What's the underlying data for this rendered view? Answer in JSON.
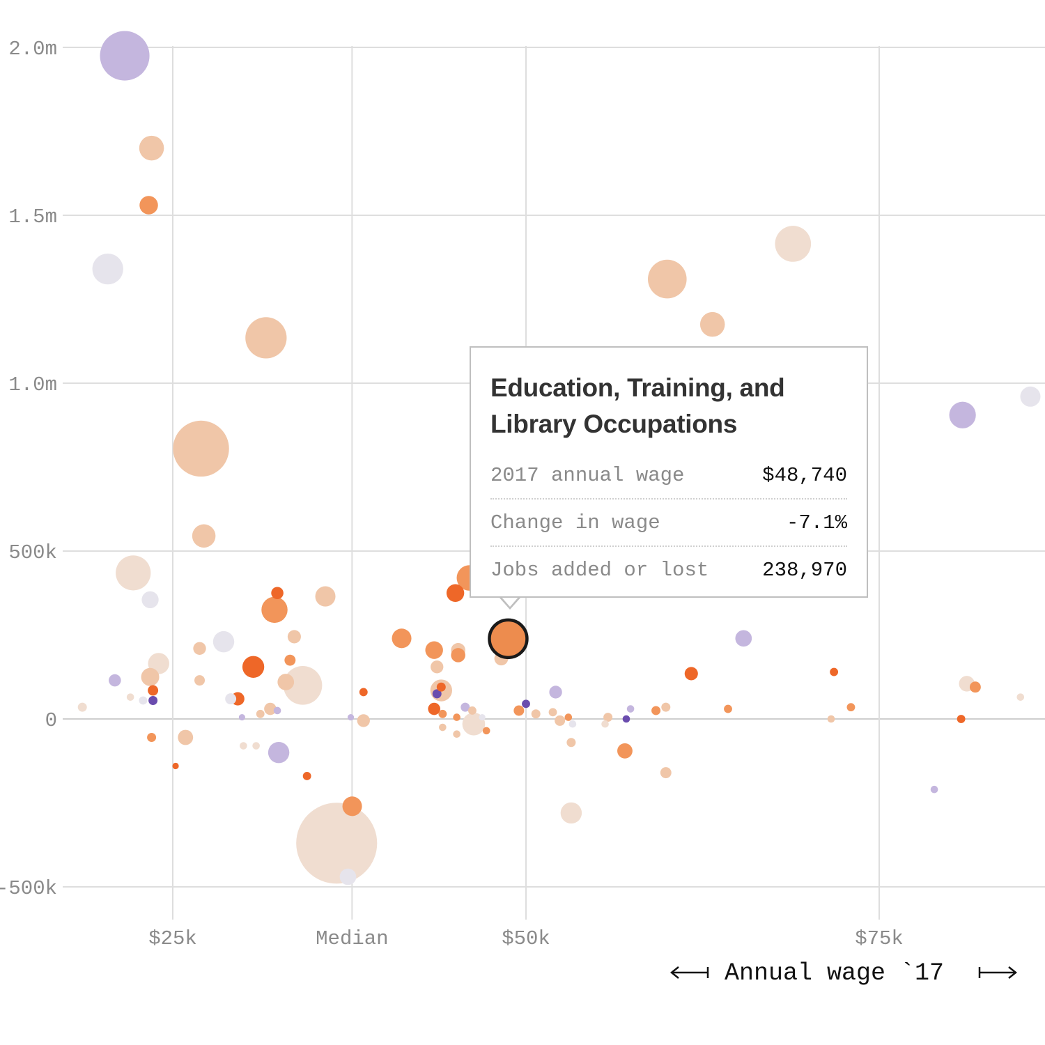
{
  "chart_data": {
    "type": "scatter",
    "x_axis": {
      "title": "Annual wage `17",
      "ticks": [
        {
          "label": "$25k",
          "value": 25000
        },
        {
          "label": "Median",
          "value": 37690
        },
        {
          "label": "$50k",
          "value": 50000
        },
        {
          "label": "$75k",
          "value": 75000
        }
      ],
      "range": [
        17000,
        87000
      ]
    },
    "y_axis": {
      "ticks": [
        {
          "label": "2.0m",
          "value": 2000000
        },
        {
          "label": "1.5m",
          "value": 1500000
        },
        {
          "label": "1.0m",
          "value": 1000000
        },
        {
          "label": "500k",
          "value": 500000
        },
        {
          "label": "0",
          "value": 0
        },
        {
          "label": "-500k",
          "value": -500000
        }
      ],
      "range": [
        -600000,
        2100000
      ]
    },
    "grid": true,
    "colors": {
      "dark_orange": "#ee6728",
      "orange": "#f2955a",
      "peach": "#f0c6a8",
      "pale_peach": "#f0ddd0",
      "light_gray": "#e6e4ec",
      "lavender": "#c4b6de",
      "purple": "#6a4cae",
      "highlight": "#ed8c4e"
    },
    "points": [
      {
        "x": 21600,
        "y": 1975000,
        "size": 1800000,
        "color": "lavender"
      },
      {
        "x": 23500,
        "y": 1700000,
        "size": 450000,
        "color": "peach"
      },
      {
        "x": 23300,
        "y": 1530000,
        "size": 250000,
        "color": "orange"
      },
      {
        "x": 20400,
        "y": 1340000,
        "size": 700000,
        "color": "light_gray"
      },
      {
        "x": 31600,
        "y": 1135000,
        "size": 1250000,
        "color": "peach"
      },
      {
        "x": 27000,
        "y": 805000,
        "size": 2300000,
        "color": "peach"
      },
      {
        "x": 27200,
        "y": 545000,
        "size": 400000,
        "color": "peach"
      },
      {
        "x": 22200,
        "y": 435000,
        "size": 900000,
        "color": "pale_peach"
      },
      {
        "x": 23400,
        "y": 355000,
        "size": 210000,
        "color": "light_gray"
      },
      {
        "x": 32400,
        "y": 375000,
        "size": 110000,
        "color": "dark_orange"
      },
      {
        "x": 32200,
        "y": 325000,
        "size": 500000,
        "color": "orange"
      },
      {
        "x": 35800,
        "y": 365000,
        "size": 300000,
        "color": "peach"
      },
      {
        "x": 33600,
        "y": 245000,
        "size": 130000,
        "color": "peach"
      },
      {
        "x": 28600,
        "y": 230000,
        "size": 330000,
        "color": "light_gray"
      },
      {
        "x": 26900,
        "y": 210000,
        "size": 120000,
        "color": "peach"
      },
      {
        "x": 24000,
        "y": 165000,
        "size": 330000,
        "color": "pale_peach"
      },
      {
        "x": 23400,
        "y": 125000,
        "size": 240000,
        "color": "peach"
      },
      {
        "x": 26900,
        "y": 115000,
        "size": 80000,
        "color": "peach"
      },
      {
        "x": 30700,
        "y": 155000,
        "size": 350000,
        "color": "dark_orange"
      },
      {
        "x": 33300,
        "y": 175000,
        "size": 90000,
        "color": "orange"
      },
      {
        "x": 33000,
        "y": 110000,
        "size": 200000,
        "color": "peach"
      },
      {
        "x": 34200,
        "y": 100000,
        "size": 1100000,
        "color": "pale_peach"
      },
      {
        "x": 20900,
        "y": 115000,
        "size": 110000,
        "color": "lavender"
      },
      {
        "x": 23600,
        "y": 85000,
        "size": 80000,
        "color": "dark_orange"
      },
      {
        "x": 23600,
        "y": 55000,
        "size": 60000,
        "color": "purple"
      },
      {
        "x": 22900,
        "y": 55000,
        "size": 50000,
        "color": "light_gray"
      },
      {
        "x": 22000,
        "y": 65000,
        "size": 40000,
        "color": "pale_peach"
      },
      {
        "x": 18600,
        "y": 35000,
        "size": 60000,
        "color": "pale_peach"
      },
      {
        "x": 29600,
        "y": 60000,
        "size": 130000,
        "color": "dark_orange"
      },
      {
        "x": 29100,
        "y": 60000,
        "size": 90000,
        "color": "light_gray"
      },
      {
        "x": 29900,
        "y": 5000,
        "size": 30000,
        "color": "lavender"
      },
      {
        "x": 31900,
        "y": 30000,
        "size": 110000,
        "color": "peach"
      },
      {
        "x": 32400,
        "y": 25000,
        "size": 40000,
        "color": "lavender"
      },
      {
        "x": 31200,
        "y": 15000,
        "size": 50000,
        "color": "peach"
      },
      {
        "x": 23500,
        "y": -55000,
        "size": 60000,
        "color": "orange"
      },
      {
        "x": 25900,
        "y": -55000,
        "size": 170000,
        "color": "peach"
      },
      {
        "x": 30000,
        "y": -80000,
        "size": 40000,
        "color": "pale_peach"
      },
      {
        "x": 30900,
        "y": -80000,
        "size": 40000,
        "color": "pale_peach"
      },
      {
        "x": 25200,
        "y": -140000,
        "size": 30000,
        "color": "dark_orange"
      },
      {
        "x": 32500,
        "y": -100000,
        "size": 330000,
        "color": "lavender"
      },
      {
        "x": 34500,
        "y": -170000,
        "size": 50000,
        "color": "dark_orange"
      },
      {
        "x": 36600,
        "y": -370000,
        "size": 4800000,
        "color": "pale_peach"
      },
      {
        "x": 37400,
        "y": -470000,
        "size": 200000,
        "color": "light_gray"
      },
      {
        "x": 37700,
        "y": -260000,
        "size": 280000,
        "color": "orange"
      },
      {
        "x": 41200,
        "y": 240000,
        "size": 280000,
        "color": "orange"
      },
      {
        "x": 38500,
        "y": 80000,
        "size": 50000,
        "color": "dark_orange"
      },
      {
        "x": 37600,
        "y": 5000,
        "size": 30000,
        "color": "lavender"
      },
      {
        "x": 38500,
        "y": -5000,
        "size": 120000,
        "color": "peach"
      },
      {
        "x": 43500,
        "y": 205000,
        "size": 230000,
        "color": "orange"
      },
      {
        "x": 43700,
        "y": 155000,
        "size": 120000,
        "color": "peach"
      },
      {
        "x": 43700,
        "y": 75000,
        "size": 60000,
        "color": "purple"
      },
      {
        "x": 44000,
        "y": 85000,
        "size": 350000,
        "color": "peach"
      },
      {
        "x": 45200,
        "y": 205000,
        "size": 150000,
        "color": "peach"
      },
      {
        "x": 45200,
        "y": 190000,
        "size": 150000,
        "color": "orange"
      },
      {
        "x": 45000,
        "y": 375000,
        "size": 230000,
        "color": "dark_orange"
      },
      {
        "x": 46000,
        "y": 420000,
        "size": 480000,
        "color": "orange"
      },
      {
        "x": 44000,
        "y": 95000,
        "size": 60000,
        "color": "dark_orange"
      },
      {
        "x": 43500,
        "y": 30000,
        "size": 110000,
        "color": "dark_orange"
      },
      {
        "x": 44100,
        "y": 15000,
        "size": 50000,
        "color": "orange"
      },
      {
        "x": 45100,
        "y": 5000,
        "size": 40000,
        "color": "orange"
      },
      {
        "x": 45700,
        "y": 35000,
        "size": 60000,
        "color": "lavender"
      },
      {
        "x": 46200,
        "y": 25000,
        "size": 50000,
        "color": "peach"
      },
      {
        "x": 46300,
        "y": -15000,
        "size": 380000,
        "color": "pale_peach"
      },
      {
        "x": 44100,
        "y": -25000,
        "size": 40000,
        "color": "peach"
      },
      {
        "x": 45100,
        "y": -45000,
        "size": 40000,
        "color": "peach"
      },
      {
        "x": 46900,
        "y": 5000,
        "size": 30000,
        "color": "light_gray"
      },
      {
        "x": 47200,
        "y": -35000,
        "size": 40000,
        "color": "orange"
      },
      {
        "x": 48250,
        "y": 180000,
        "size": 140000,
        "color": "peach"
      },
      {
        "x": 48740,
        "y": 238970,
        "size": 1300000,
        "color": "highlight",
        "highlighted": true
      },
      {
        "x": 50000,
        "y": 45000,
        "size": 50000,
        "color": "purple"
      },
      {
        "x": 49500,
        "y": 25000,
        "size": 80000,
        "color": "orange"
      },
      {
        "x": 50700,
        "y": 15000,
        "size": 60000,
        "color": "peach"
      },
      {
        "x": 52100,
        "y": 80000,
        "size": 120000,
        "color": "lavender"
      },
      {
        "x": 51900,
        "y": 20000,
        "size": 50000,
        "color": "peach"
      },
      {
        "x": 52400,
        "y": -5000,
        "size": 80000,
        "color": "peach"
      },
      {
        "x": 53000,
        "y": 5000,
        "size": 40000,
        "color": "orange"
      },
      {
        "x": 53300,
        "y": -15000,
        "size": 40000,
        "color": "light_gray"
      },
      {
        "x": 53200,
        "y": -70000,
        "size": 60000,
        "color": "peach"
      },
      {
        "x": 53200,
        "y": -280000,
        "size": 330000,
        "color": "pale_peach"
      },
      {
        "x": 55600,
        "y": -15000,
        "size": 40000,
        "color": "pale_peach"
      },
      {
        "x": 55800,
        "y": 5000,
        "size": 60000,
        "color": "peach"
      },
      {
        "x": 57000,
        "y": -95000,
        "size": 170000,
        "color": "orange"
      },
      {
        "x": 57100,
        "y": 0,
        "size": 40000,
        "color": "purple"
      },
      {
        "x": 57400,
        "y": 30000,
        "size": 40000,
        "color": "lavender"
      },
      {
        "x": 59200,
        "y": 25000,
        "size": 60000,
        "color": "orange"
      },
      {
        "x": 59900,
        "y": 35000,
        "size": 60000,
        "color": "peach"
      },
      {
        "x": 59900,
        "y": -160000,
        "size": 90000,
        "color": "peach"
      },
      {
        "x": 60000,
        "y": 1310000,
        "size": 1100000,
        "color": "peach"
      },
      {
        "x": 63200,
        "y": 1175000,
        "size": 450000,
        "color": "peach"
      },
      {
        "x": 68900,
        "y": 1415000,
        "size": 950000,
        "color": "pale_peach"
      },
      {
        "x": 61700,
        "y": 135000,
        "size": 130000,
        "color": "dark_orange"
      },
      {
        "x": 65400,
        "y": 240000,
        "size": 200000,
        "color": "lavender"
      },
      {
        "x": 64300,
        "y": 30000,
        "size": 50000,
        "color": "orange"
      },
      {
        "x": 71800,
        "y": 140000,
        "size": 50000,
        "color": "dark_orange"
      },
      {
        "x": 71600,
        "y": 0,
        "size": 40000,
        "color": "peach"
      },
      {
        "x": 73000,
        "y": 35000,
        "size": 50000,
        "color": "orange"
      },
      {
        "x": 78900,
        "y": -210000,
        "size": 40000,
        "color": "lavender"
      },
      {
        "x": 81200,
        "y": 105000,
        "size": 180000,
        "color": "pale_peach"
      },
      {
        "x": 81800,
        "y": 95000,
        "size": 90000,
        "color": "orange"
      },
      {
        "x": 80800,
        "y": 0,
        "size": 50000,
        "color": "dark_orange"
      },
      {
        "x": 80900,
        "y": 905000,
        "size": 520000,
        "color": "lavender"
      },
      {
        "x": 85700,
        "y": 960000,
        "size": 300000,
        "color": "light_gray"
      },
      {
        "x": 85000,
        "y": 65000,
        "size": 40000,
        "color": "pale_peach"
      }
    ]
  },
  "tooltip": {
    "title": "Education, Training, and Library Occupations",
    "rows": [
      {
        "label": "2017 annual wage",
        "value": "$48,740"
      },
      {
        "label": "Change in wage",
        "value": "-7.1%"
      },
      {
        "label": "Jobs added or lost",
        "value": "238,970"
      }
    ]
  }
}
